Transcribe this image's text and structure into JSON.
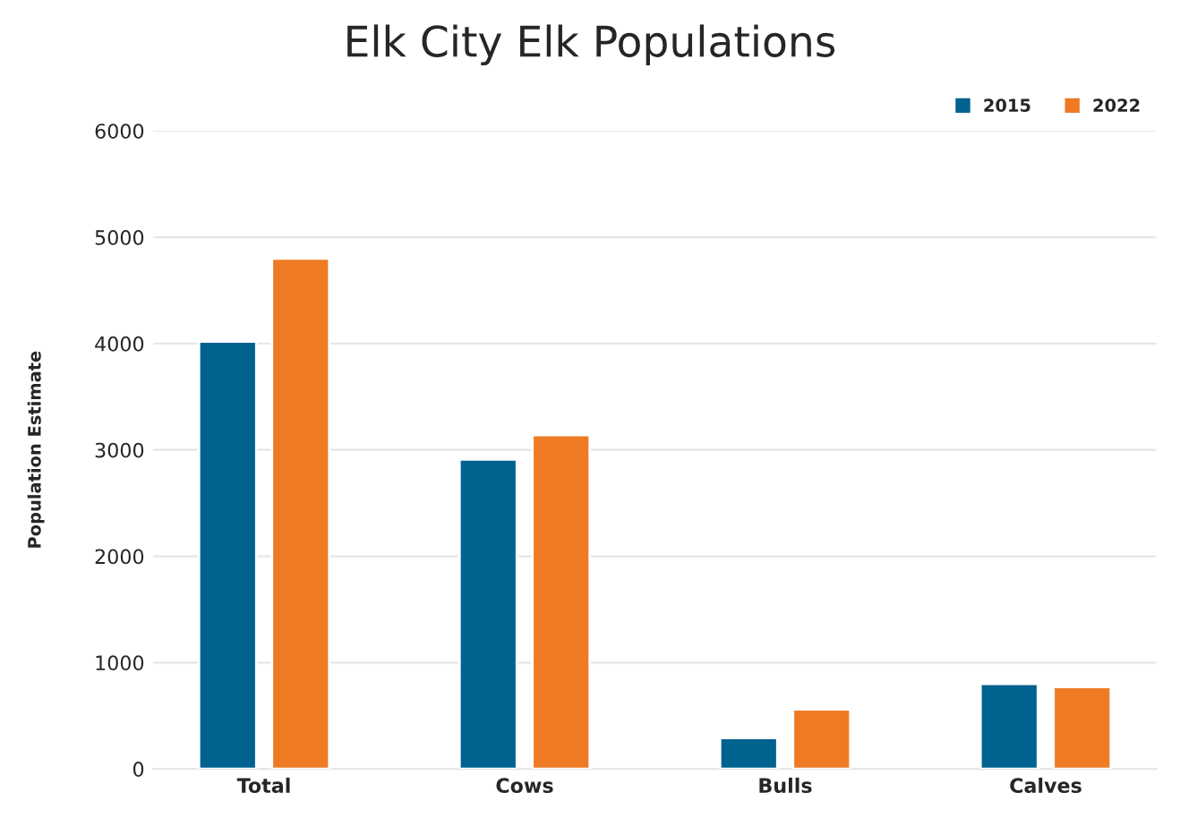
{
  "chart_data": {
    "type": "bar",
    "title": "Elk City Elk Populations",
    "ylabel": "Population Estimate",
    "categories": [
      "Total",
      "Cows",
      "Bulls",
      "Calves"
    ],
    "series": [
      {
        "name": "2015",
        "color": "#00628f",
        "values": [
          4020,
          2910,
          290,
          800
        ]
      },
      {
        "name": "2022",
        "color": "#ee7b24",
        "values": [
          4800,
          3140,
          560,
          770
        ]
      }
    ],
    "ylim": [
      0,
      6000
    ],
    "yticks": [
      0,
      1000,
      2000,
      3000,
      4000,
      5000,
      6000
    ],
    "grid": "y",
    "legend": "top right"
  }
}
